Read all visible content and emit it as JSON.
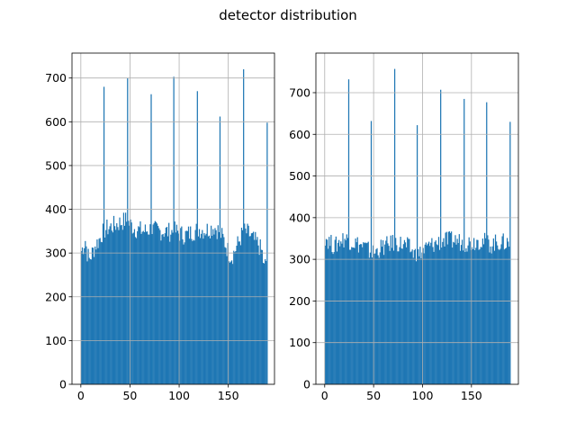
{
  "suptitle": "detector distribution",
  "colors": {
    "bar": "#1f77b4",
    "grid": "#b0b0b0",
    "axis": "#000000"
  },
  "chart_data": [
    {
      "type": "bar",
      "title": "",
      "xlabel": "",
      "ylabel": "",
      "grid": true,
      "xlim": [
        -9,
        197
      ],
      "ylim": [
        0,
        757
      ],
      "xticks": [
        0,
        50,
        100,
        150
      ],
      "yticks": [
        0,
        100,
        200,
        300,
        400,
        500,
        600,
        700
      ],
      "x_bin_range": [
        0,
        189
      ],
      "baseline": [
        [
          0,
          305
        ],
        [
          2,
          315
        ],
        [
          4,
          330
        ],
        [
          6,
          300
        ],
        [
          8,
          285
        ],
        [
          10,
          295
        ],
        [
          12,
          305
        ],
        [
          15,
          320
        ],
        [
          18,
          330
        ],
        [
          21,
          345
        ],
        [
          25,
          355
        ],
        [
          30,
          360
        ],
        [
          35,
          365
        ],
        [
          40,
          370
        ],
        [
          45,
          375
        ],
        [
          50,
          365
        ],
        [
          55,
          355
        ],
        [
          60,
          352
        ],
        [
          65,
          350
        ],
        [
          70,
          355
        ],
        [
          75,
          352
        ],
        [
          80,
          350
        ],
        [
          85,
          350
        ],
        [
          90,
          348
        ],
        [
          95,
          350
        ],
        [
          100,
          345
        ],
        [
          105,
          340
        ],
        [
          110,
          345
        ],
        [
          115,
          350
        ],
        [
          120,
          355
        ],
        [
          125,
          352
        ],
        [
          130,
          355
        ],
        [
          135,
          360
        ],
        [
          140,
          350
        ],
        [
          145,
          330
        ],
        [
          150,
          300
        ],
        [
          153,
          292
        ],
        [
          156,
          305
        ],
        [
          160,
          325
        ],
        [
          165,
          350
        ],
        [
          170,
          345
        ],
        [
          175,
          330
        ],
        [
          180,
          320
        ],
        [
          184,
          300
        ],
        [
          186,
          265
        ],
        [
          189,
          290
        ]
      ],
      "peaks": [
        {
          "x": 23,
          "y": 680
        },
        {
          "x": 47,
          "y": 700
        },
        {
          "x": 71,
          "y": 663
        },
        {
          "x": 94,
          "y": 703
        },
        {
          "x": 118,
          "y": 670
        },
        {
          "x": 141,
          "y": 612
        },
        {
          "x": 165,
          "y": 720
        },
        {
          "x": 189,
          "y": 598
        }
      ]
    },
    {
      "type": "bar",
      "title": "",
      "xlabel": "",
      "ylabel": "",
      "grid": true,
      "xlim": [
        -9,
        198
      ],
      "ylim": [
        0,
        795
      ],
      "xticks": [
        0,
        50,
        100,
        150
      ],
      "yticks": [
        0,
        100,
        200,
        300,
        400,
        500,
        600,
        700
      ],
      "x_bin_range": [
        0,
        189
      ],
      "baseline": [
        [
          0,
          355
        ],
        [
          5,
          340
        ],
        [
          10,
          330
        ],
        [
          15,
          345
        ],
        [
          20,
          350
        ],
        [
          25,
          345
        ],
        [
          30,
          340
        ],
        [
          35,
          335
        ],
        [
          40,
          330
        ],
        [
          45,
          320
        ],
        [
          50,
          315
        ],
        [
          55,
          325
        ],
        [
          60,
          330
        ],
        [
          65,
          335
        ],
        [
          70,
          340
        ],
        [
          75,
          338
        ],
        [
          80,
          335
        ],
        [
          85,
          330
        ],
        [
          90,
          315
        ],
        [
          95,
          310
        ],
        [
          100,
          320
        ],
        [
          105,
          330
        ],
        [
          110,
          335
        ],
        [
          115,
          340
        ],
        [
          120,
          345
        ],
        [
          125,
          345
        ],
        [
          130,
          345
        ],
        [
          135,
          345
        ],
        [
          140,
          340
        ],
        [
          145,
          340
        ],
        [
          150,
          340
        ],
        [
          155,
          345
        ],
        [
          160,
          345
        ],
        [
          165,
          340
        ],
        [
          170,
          335
        ],
        [
          175,
          340
        ],
        [
          180,
          340
        ],
        [
          185,
          340
        ],
        [
          189,
          340
        ]
      ],
      "peaks": [
        {
          "x": 24,
          "y": 732
        },
        {
          "x": 47,
          "y": 632
        },
        {
          "x": 71,
          "y": 757
        },
        {
          "x": 94,
          "y": 622
        },
        {
          "x": 118,
          "y": 707
        },
        {
          "x": 142,
          "y": 685
        },
        {
          "x": 165,
          "y": 677
        },
        {
          "x": 189,
          "y": 630
        }
      ]
    }
  ]
}
